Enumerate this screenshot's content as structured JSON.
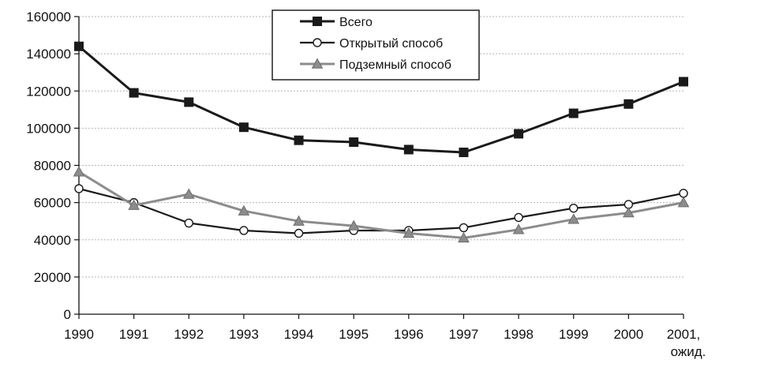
{
  "chart_data": {
    "type": "line",
    "title": "",
    "xlabel": "",
    "ylabel": "",
    "x": [
      "1990",
      "1991",
      "1992",
      "1993",
      "1994",
      "1995",
      "1996",
      "1997",
      "1998",
      "1999",
      "2000",
      "2001,\nожид."
    ],
    "ylim": [
      0,
      160000
    ],
    "yticks": [
      0,
      20000,
      40000,
      60000,
      80000,
      100000,
      120000,
      140000,
      160000
    ],
    "grid": "horizontal",
    "legend_position": "top-center",
    "series": [
      {
        "name": "Всего",
        "marker": "square-filled",
        "color": "#1a1a1a",
        "values": [
          144000,
          119000,
          114000,
          100500,
          93500,
          92500,
          88500,
          87000,
          97000,
          108000,
          113000,
          125000
        ]
      },
      {
        "name": "Открытый способ",
        "marker": "circle-open",
        "color": "#1a1a1a",
        "values": [
          67500,
          60000,
          49000,
          45000,
          43500,
          45000,
          45000,
          46500,
          52000,
          57000,
          59000,
          65000
        ]
      },
      {
        "name": "Подземный способ",
        "marker": "triangle-gray",
        "color": "#8c8c8c",
        "values": [
          76500,
          58500,
          64500,
          55500,
          50000,
          47500,
          43500,
          41000,
          45500,
          51000,
          54500,
          60000
        ]
      }
    ]
  }
}
